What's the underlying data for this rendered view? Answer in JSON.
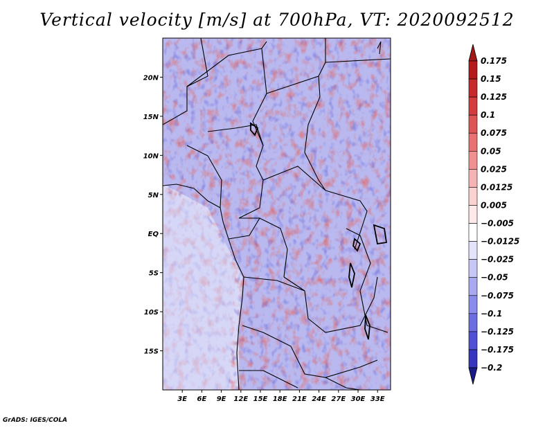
{
  "title": "Vertical velocity [m/s] at 700hPa, VT: 2020092512",
  "footer": "GrADS: IGES/COLA",
  "map": {
    "projection": "lat-lon",
    "lon_range": [
      0,
      35
    ],
    "lat_range": [
      -20,
      25
    ],
    "lat_ticks": [
      {
        "value": 20,
        "label": "20N"
      },
      {
        "value": 15,
        "label": "15N"
      },
      {
        "value": 10,
        "label": "10N"
      },
      {
        "value": 5,
        "label": "5N"
      },
      {
        "value": 0,
        "label": "EQ"
      },
      {
        "value": -5,
        "label": "5S"
      },
      {
        "value": -10,
        "label": "10S"
      },
      {
        "value": -15,
        "label": "15S"
      }
    ],
    "lon_ticks": [
      {
        "value": 3,
        "label": "3E"
      },
      {
        "value": 6,
        "label": "6E"
      },
      {
        "value": 9,
        "label": "9E"
      },
      {
        "value": 12,
        "label": "12E"
      },
      {
        "value": 15,
        "label": "15E"
      },
      {
        "value": 18,
        "label": "18E"
      },
      {
        "value": 21,
        "label": "21E"
      },
      {
        "value": 24,
        "label": "24E"
      },
      {
        "value": 27,
        "label": "27E"
      },
      {
        "value": 30,
        "label": "30E"
      },
      {
        "value": 33,
        "label": "33E"
      }
    ],
    "field": "vertical velocity (shaded)"
  },
  "colorbar": {
    "levels": [
      {
        "label": "0.175",
        "color": "#b51a1a"
      },
      {
        "label": "0.15",
        "color": "#c62a2a"
      },
      {
        "label": "0.125",
        "color": "#d43d3d"
      },
      {
        "label": "0.1",
        "color": "#de5555"
      },
      {
        "label": "0.075",
        "color": "#e87272"
      },
      {
        "label": "0.05",
        "color": "#f09191"
      },
      {
        "label": "0.025",
        "color": "#f6b3b3"
      },
      {
        "label": "0.0125",
        "color": "#fad2d2"
      },
      {
        "label": "0.005",
        "color": "#fde9e9"
      },
      {
        "label": "−0.005",
        "color": "#ffffff"
      },
      {
        "label": "−0.0125",
        "color": "#e3e3fb"
      },
      {
        "label": "−0.025",
        "color": "#c7c7f6"
      },
      {
        "label": "−0.05",
        "color": "#a9a9f1"
      },
      {
        "label": "−0.075",
        "color": "#8b8bec"
      },
      {
        "label": "−0.1",
        "color": "#6d6de2"
      },
      {
        "label": "−0.125",
        "color": "#5050d4"
      },
      {
        "label": "−0.175",
        "color": "#3535bf"
      },
      {
        "label": "−0.2",
        "color": "#2020a6"
      }
    ],
    "top_triangle_color": "#a01818",
    "bottom_triangle_color": "#1a1a8a"
  }
}
